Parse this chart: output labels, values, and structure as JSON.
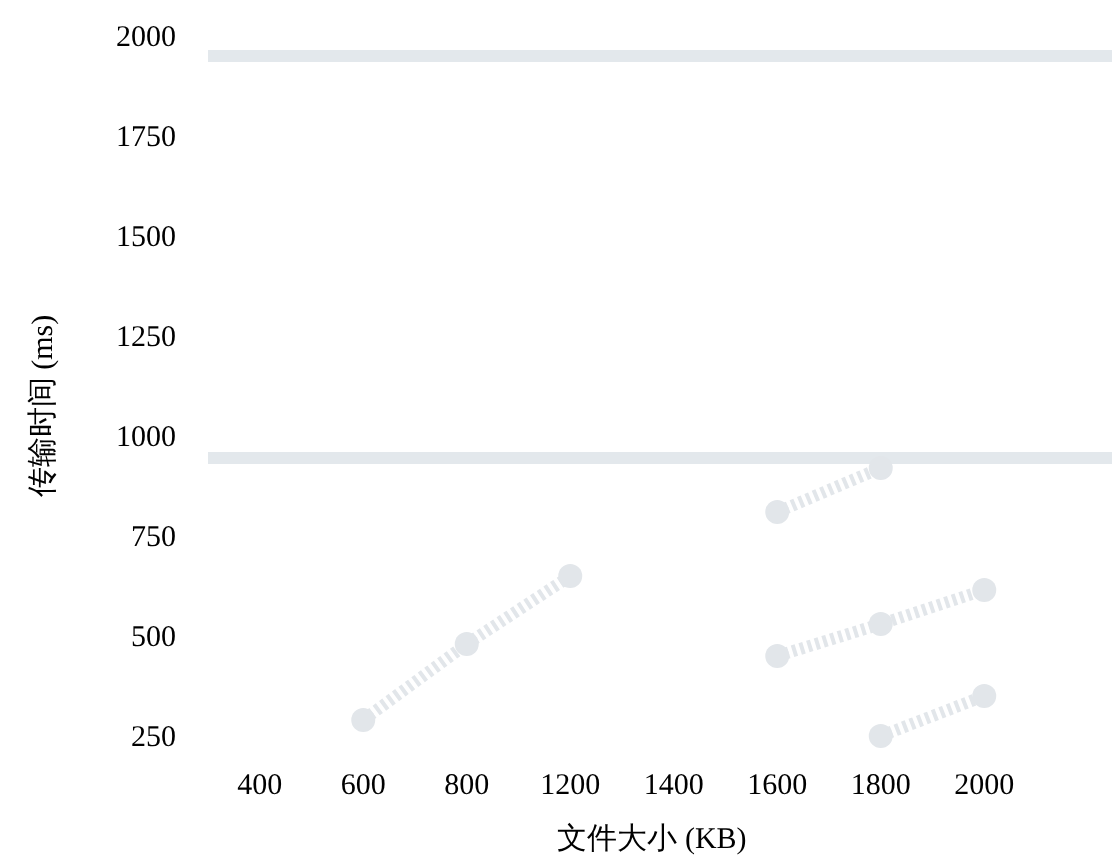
{
  "chart_data": {
    "type": "line",
    "xlabel": "文件大小 (KB)",
    "ylabel": "传输时间 (ms)",
    "categories": [
      "400",
      "600",
      "800",
      "1200",
      "1400",
      "1600",
      "1800",
      "2000"
    ],
    "ylim": [
      250,
      2000
    ],
    "yticks": [
      250,
      500,
      750,
      1000,
      1250,
      1500,
      1750,
      2000
    ],
    "grid": false,
    "marker": "circle",
    "line_style": "dotted",
    "series": [
      {
        "color": "#e2e6ea",
        "values": [
          null,
          290,
          480,
          650,
          null,
          null,
          null,
          null
        ]
      },
      {
        "color": "#e2e6ea",
        "values": [
          null,
          null,
          null,
          null,
          null,
          450,
          530,
          615
        ]
      },
      {
        "color": "#e2e6ea",
        "values": [
          null,
          null,
          null,
          null,
          null,
          810,
          920,
          null
        ]
      },
      {
        "color": "#e2e6ea",
        "values": [
          null,
          null,
          null,
          null,
          null,
          null,
          250,
          350
        ]
      }
    ],
    "ref_lines": [
      {
        "axis": "y",
        "value": 1950,
        "color": "#e3e8ec"
      },
      {
        "axis": "y",
        "value": 945,
        "color": "#e3e8ec"
      }
    ]
  }
}
